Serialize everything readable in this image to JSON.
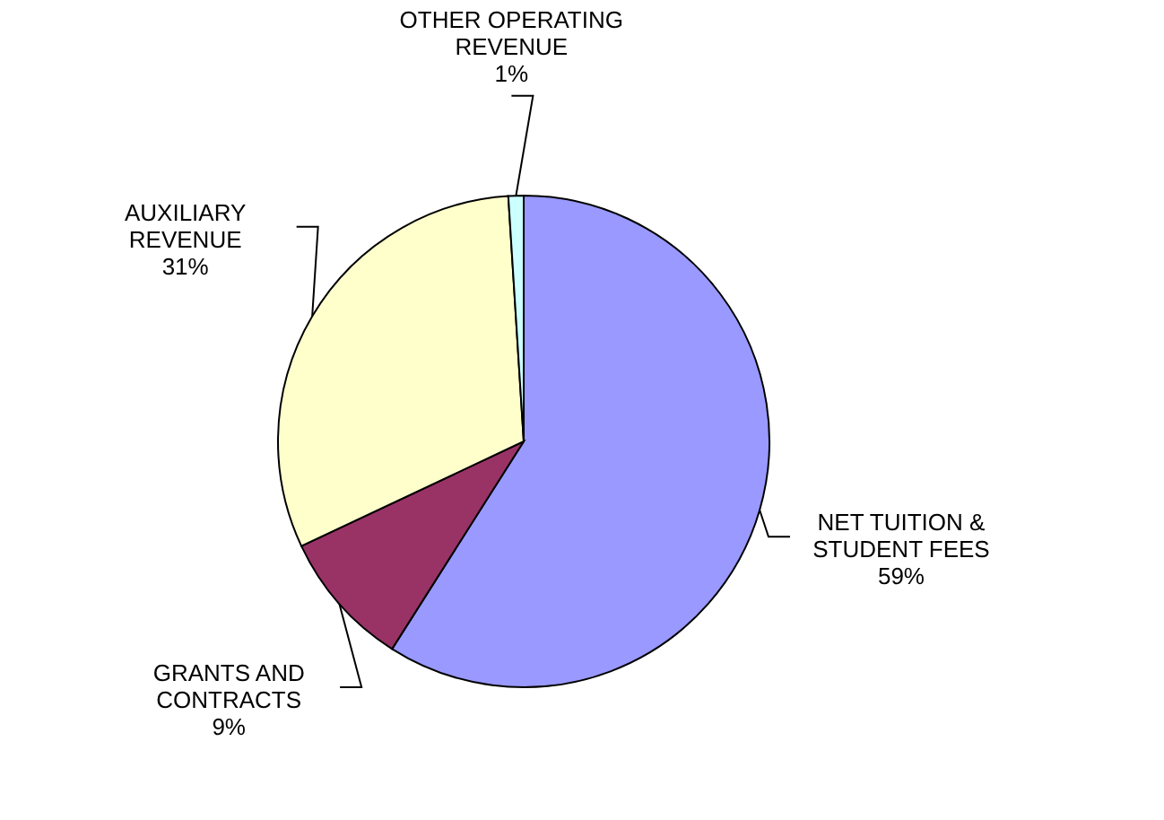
{
  "chart_data": {
    "type": "pie",
    "categories": [
      "NET TUITION & STUDENT FEES",
      "GRANTS AND CONTRACTS",
      "AUXILIARY REVENUE",
      "OTHER OPERATING REVENUE"
    ],
    "values": [
      59,
      9,
      31,
      1
    ],
    "value_labels": [
      "59%",
      "9%",
      "31%",
      "1%"
    ],
    "colors": [
      "#9999ff",
      "#993366",
      "#ffffcc",
      "#ccffff"
    ]
  }
}
